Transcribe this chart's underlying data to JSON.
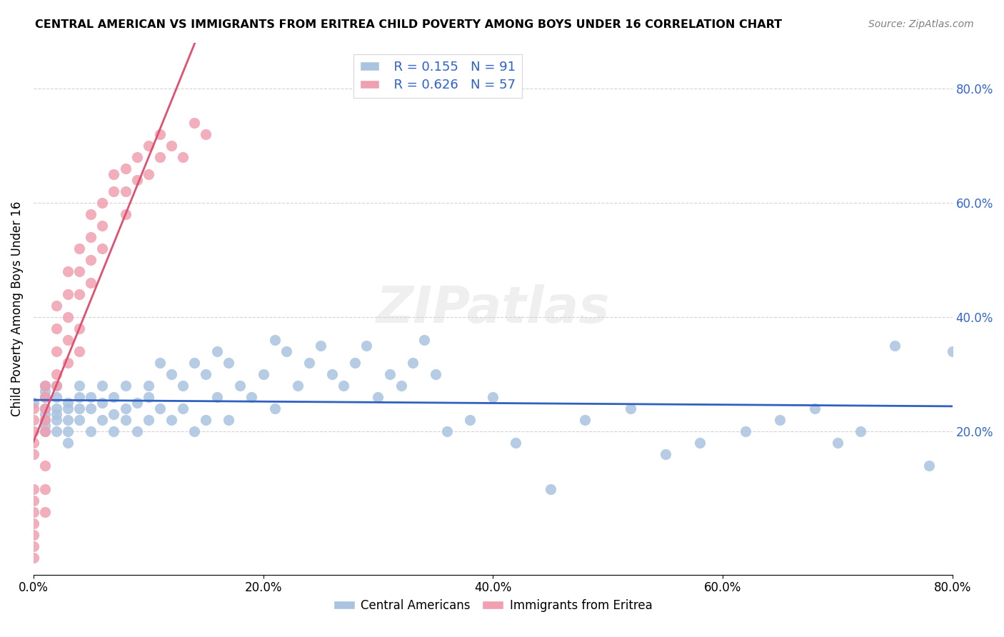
{
  "title": "CENTRAL AMERICAN VS IMMIGRANTS FROM ERITREA CHILD POVERTY AMONG BOYS UNDER 16 CORRELATION CHART",
  "source": "Source: ZipAtlas.com",
  "xlabel": "",
  "ylabel": "Child Poverty Among Boys Under 16",
  "xlim": [
    0.0,
    0.8
  ],
  "ylim": [
    -0.05,
    0.88
  ],
  "xticks": [
    0.0,
    0.2,
    0.4,
    0.6,
    0.8
  ],
  "xticklabels": [
    "0.0%",
    "20.0%",
    "40.0%",
    "60.0%",
    "80.0%"
  ],
  "ytick_positions": [
    0.0,
    0.2,
    0.4,
    0.6,
    0.8
  ],
  "yticklabels_right": [
    "20.0%",
    "40.0%",
    "60.0%",
    "80.0%"
  ],
  "right_yticks": [
    0.2,
    0.4,
    0.6,
    0.8
  ],
  "blue_R": 0.155,
  "blue_N": 91,
  "pink_R": 0.626,
  "pink_N": 57,
  "blue_color": "#aac4e0",
  "pink_color": "#f0a0b0",
  "blue_line_color": "#3060c0",
  "pink_line_color": "#e05070",
  "watermark": "ZIPatlas",
  "blue_scatter_x": [
    0.0,
    0.01,
    0.01,
    0.01,
    0.01,
    0.01,
    0.01,
    0.01,
    0.01,
    0.02,
    0.02,
    0.02,
    0.02,
    0.02,
    0.02,
    0.03,
    0.03,
    0.03,
    0.03,
    0.03,
    0.04,
    0.04,
    0.04,
    0.04,
    0.05,
    0.05,
    0.05,
    0.06,
    0.06,
    0.06,
    0.07,
    0.07,
    0.07,
    0.08,
    0.08,
    0.08,
    0.09,
    0.09,
    0.1,
    0.1,
    0.1,
    0.11,
    0.11,
    0.12,
    0.12,
    0.13,
    0.13,
    0.14,
    0.14,
    0.15,
    0.15,
    0.16,
    0.16,
    0.17,
    0.17,
    0.18,
    0.19,
    0.2,
    0.21,
    0.21,
    0.22,
    0.23,
    0.24,
    0.25,
    0.26,
    0.27,
    0.28,
    0.29,
    0.3,
    0.31,
    0.32,
    0.33,
    0.34,
    0.35,
    0.36,
    0.38,
    0.4,
    0.42,
    0.45,
    0.48,
    0.52,
    0.55,
    0.58,
    0.62,
    0.65,
    0.68,
    0.7,
    0.72,
    0.75,
    0.78,
    0.8
  ],
  "blue_scatter_y": [
    0.25,
    0.22,
    0.24,
    0.26,
    0.28,
    0.2,
    0.23,
    0.27,
    0.21,
    0.24,
    0.22,
    0.26,
    0.23,
    0.2,
    0.28,
    0.25,
    0.22,
    0.24,
    0.2,
    0.18,
    0.24,
    0.26,
    0.22,
    0.28,
    0.24,
    0.2,
    0.26,
    0.25,
    0.22,
    0.28,
    0.23,
    0.26,
    0.2,
    0.24,
    0.22,
    0.28,
    0.25,
    0.2,
    0.28,
    0.22,
    0.26,
    0.32,
    0.24,
    0.3,
    0.22,
    0.28,
    0.24,
    0.32,
    0.2,
    0.3,
    0.22,
    0.34,
    0.26,
    0.32,
    0.22,
    0.28,
    0.26,
    0.3,
    0.36,
    0.24,
    0.34,
    0.28,
    0.32,
    0.35,
    0.3,
    0.28,
    0.32,
    0.35,
    0.26,
    0.3,
    0.28,
    0.32,
    0.36,
    0.3,
    0.2,
    0.22,
    0.26,
    0.18,
    0.1,
    0.22,
    0.24,
    0.16,
    0.18,
    0.2,
    0.22,
    0.24,
    0.18,
    0.2,
    0.35,
    0.14,
    0.34
  ],
  "pink_scatter_x": [
    0.0,
    0.0,
    0.0,
    0.0,
    0.0,
    0.0,
    0.0,
    0.0,
    0.0,
    0.0,
    0.0,
    0.0,
    0.01,
    0.01,
    0.01,
    0.01,
    0.01,
    0.01,
    0.01,
    0.01,
    0.02,
    0.02,
    0.02,
    0.02,
    0.02,
    0.03,
    0.03,
    0.03,
    0.03,
    0.03,
    0.04,
    0.04,
    0.04,
    0.04,
    0.04,
    0.05,
    0.05,
    0.05,
    0.05,
    0.06,
    0.06,
    0.06,
    0.07,
    0.07,
    0.08,
    0.08,
    0.08,
    0.09,
    0.09,
    0.1,
    0.1,
    0.11,
    0.11,
    0.12,
    0.13,
    0.14,
    0.15
  ],
  "pink_scatter_y": [
    0.2,
    0.22,
    0.24,
    0.1,
    0.08,
    0.06,
    0.04,
    0.02,
    0.0,
    -0.02,
    0.16,
    0.18,
    0.22,
    0.24,
    0.26,
    0.28,
    0.2,
    0.14,
    0.1,
    0.06,
    0.28,
    0.3,
    0.34,
    0.38,
    0.42,
    0.32,
    0.36,
    0.4,
    0.44,
    0.48,
    0.44,
    0.48,
    0.52,
    0.38,
    0.34,
    0.46,
    0.5,
    0.54,
    0.58,
    0.52,
    0.56,
    0.6,
    0.62,
    0.65,
    0.58,
    0.62,
    0.66,
    0.64,
    0.68,
    0.7,
    0.65,
    0.68,
    0.72,
    0.7,
    0.68,
    0.74,
    0.72
  ]
}
